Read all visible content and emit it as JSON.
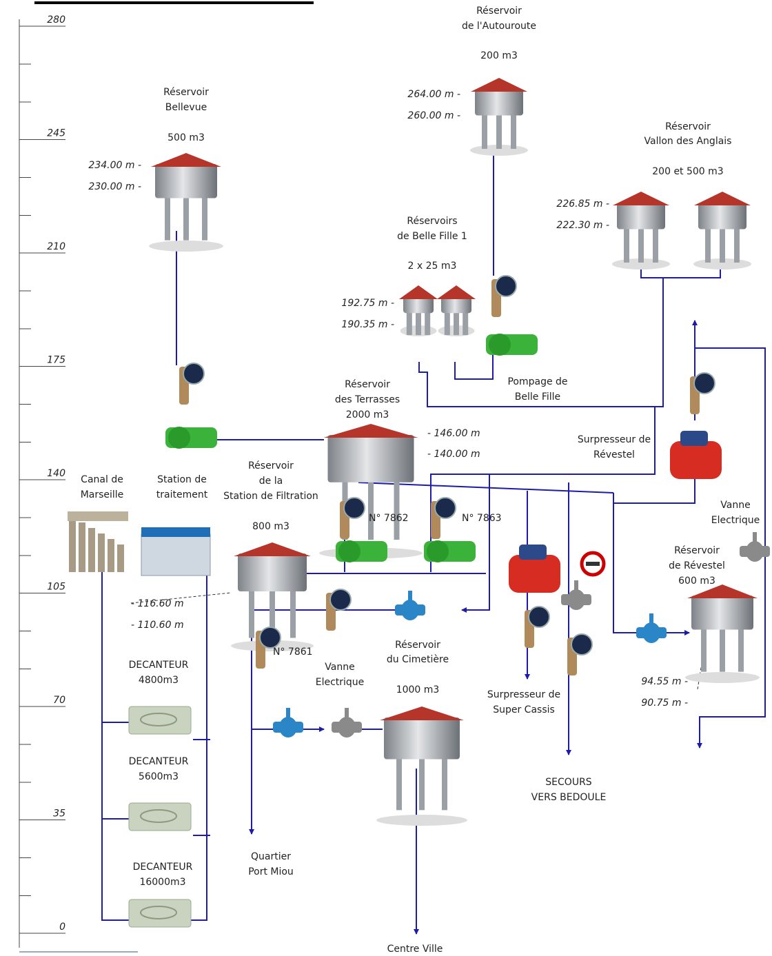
{
  "scale": {
    "labels": [
      "280",
      "245",
      "210",
      "175",
      "140",
      "105",
      "70",
      "35",
      "0"
    ]
  },
  "reservoirs": {
    "autoroute": {
      "lines": [
        "Réservoir",
        "de l'Autouroute"
      ],
      "capacity": "200 m3",
      "levels": [
        "264.00 m -",
        "260.00 m -"
      ]
    },
    "bellevue": {
      "lines": [
        "Réservoir",
        "Bellevue"
      ],
      "capacity": "500 m3",
      "levels": [
        "234.00 m -",
        "230.00 m -"
      ]
    },
    "vallon": {
      "lines": [
        "Réservoir",
        "Vallon des Anglais"
      ],
      "capacity": "200 et 500 m3",
      "levels": [
        "226.85 m -",
        "222.30 m -"
      ]
    },
    "belle_fille": {
      "lines": [
        "Réservoirs",
        "de Belle Fille 1"
      ],
      "capacity": "2 x 25 m3",
      "levels": [
        "192.75 m -",
        "190.35 m -"
      ]
    },
    "terrasses": {
      "lines": [
        "Réservoir",
        "des Terrasses"
      ],
      "capacity": "2000 m3",
      "levels": [
        "- 146.00 m",
        "- 140.00 m"
      ]
    },
    "filtration": {
      "lines": [
        "Réservoir",
        "de la",
        "Station de Filtration"
      ],
      "capacity": "800 m3",
      "levels": [
        "- 116.60 m",
        "- 110.60 m"
      ]
    },
    "revestel": {
      "lines": [
        "Réservoir",
        "de Révestel"
      ],
      "capacity": "600 m3",
      "levels": [
        "94.55 m -",
        "90.75 m -"
      ]
    },
    "cimetiere": {
      "lines": [
        "Réservoir",
        "du Cimetière"
      ],
      "capacity": "1000 m3"
    }
  },
  "labels": {
    "pompage": [
      "Pompage de",
      "Belle Fille"
    ],
    "surpresseur_revestel": [
      "Surpresseur de",
      "Révestel"
    ],
    "canal": [
      "Canal de",
      "Marseille"
    ],
    "station_traitement": [
      "Station de",
      "traitement"
    ],
    "vanne_right": [
      "Vanne",
      "Electrique"
    ],
    "vanne_mid": [
      "Vanne",
      "Electrique"
    ],
    "super_cassis": [
      "Surpresseur de",
      "Super Cassis"
    ],
    "secours": [
      "SECOURS",
      "VERS BEDOULE"
    ],
    "port_miou": [
      "Quartier",
      "Port Miou"
    ],
    "centre_ville": [
      "Centre Ville"
    ]
  },
  "decanteurs": [
    {
      "name": "DECANTEUR",
      "capacity": "4800m3"
    },
    {
      "name": "DECANTEUR",
      "capacity": "5600m3"
    },
    {
      "name": "DECANTEUR",
      "capacity": "16000m3"
    }
  ],
  "meters": [
    "N° 7862",
    "N° 7863",
    "N° 7861"
  ]
}
